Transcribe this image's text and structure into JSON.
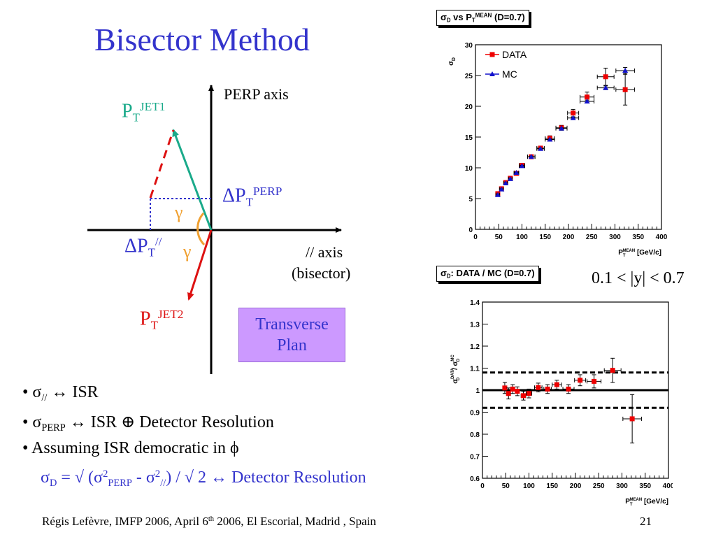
{
  "slide": {
    "title": "Bisector Method",
    "footer_left": "Régis Lefèvre, IMFP 2006, April 6",
    "footer_sup": "th",
    "footer_right_part": " 2006, El Escorial, Madrid , Spain",
    "page_number": "21"
  },
  "diagram": {
    "perp_axis_label": "PERP axis",
    "bisector_axis_label_1": "// axis",
    "bisector_axis_label_2": "(bisector)",
    "pt": "P",
    "t_sub": "T",
    "jet1_sup": "JET1",
    "jet2_sup": "JET2",
    "delta": "Δ",
    "perp_sup": "PERP",
    "par_sup": "//",
    "gamma": "γ",
    "plan_line1": "Transverse",
    "plan_line2": "Plan",
    "colors": {
      "jet1": "#1aaa8a",
      "jet2": "#dd1111",
      "dashed": "#dd1111",
      "dotted": "#3333cc",
      "gamma": "#f0a030"
    }
  },
  "bullets": [
    {
      "text": "σ",
      "sub": "//",
      "rest": "  ↔ ISR"
    },
    {
      "text": "σ",
      "sub": "PERP",
      "rest": " ↔ ISR ⊕ Detector Resolution"
    },
    {
      "text": "Assuming ISR democratic in ϕ",
      "sub": "",
      "rest": ""
    }
  ],
  "formula": {
    "a": "σ",
    "a_sub": "D",
    "b": "  = √ (σ",
    "b_sup": "2",
    "b_sub": "PERP",
    "c": " - σ",
    "c_sup": "2",
    "c_sub": "//",
    "d": ") / √ 2 ↔ Detector Resolution"
  },
  "rapidity_range": "0.1 < |y| < 0.7",
  "chart_data": [
    {
      "type": "scatter",
      "title_sigma": "σ",
      "title_sigma_sub": "D",
      "title_mid": " vs P",
      "title_t": "T",
      "title_mean": "MEAN",
      "title_tail": " (D=0.7)",
      "ylabel": "σ",
      "ylabel_sub": "D",
      "xlabel_p": "P",
      "xlabel_t": "T",
      "xlabel_mean": "MEAN",
      "xlabel_unit": " [GeV/c]",
      "xlim": [
        0,
        400
      ],
      "ylim": [
        0,
        30
      ],
      "xticks": [
        0,
        50,
        100,
        150,
        200,
        250,
        300,
        350,
        400
      ],
      "yticks": [
        0,
        5,
        10,
        15,
        20,
        25,
        30
      ],
      "legend": "top-left",
      "series": [
        {
          "name": "DATA",
          "color": "#ee0000",
          "marker": "square",
          "x": [
            48,
            56,
            65,
            75,
            88,
            100,
            120,
            140,
            160,
            185,
            210,
            240,
            280,
            322
          ],
          "y": [
            5.8,
            6.6,
            7.6,
            8.3,
            9.1,
            10.4,
            11.8,
            13.2,
            14.8,
            16.5,
            18.9,
            21.5,
            24.8,
            22.7
          ],
          "xerr": [
            4,
            4,
            4,
            4,
            5,
            6,
            8,
            8,
            10,
            12,
            12,
            15,
            18,
            20
          ],
          "yerr": [
            0.2,
            0.2,
            0.2,
            0.2,
            0.2,
            0.3,
            0.3,
            0.3,
            0.4,
            0.4,
            0.6,
            0.8,
            1.4,
            2.5
          ]
        },
        {
          "name": "MC",
          "color": "#1111cc",
          "marker": "triangle",
          "x": [
            48,
            56,
            65,
            75,
            88,
            100,
            120,
            140,
            160,
            185,
            210,
            240,
            280,
            322
          ],
          "y": [
            5.6,
            6.5,
            7.5,
            8.2,
            9.2,
            10.3,
            11.8,
            13.1,
            14.6,
            16.4,
            18.1,
            20.8,
            23.0,
            25.8
          ],
          "xerr": [
            4,
            4,
            4,
            4,
            5,
            6,
            8,
            8,
            10,
            12,
            12,
            15,
            18,
            20
          ],
          "yerr": [
            0.1,
            0.1,
            0.1,
            0.1,
            0.1,
            0.1,
            0.1,
            0.1,
            0.1,
            0.1,
            0.1,
            0.2,
            0.3,
            0.5
          ]
        }
      ]
    },
    {
      "type": "scatter",
      "title_sigma": "σ",
      "title_sigma_sub": "D",
      "title_tail": ": DATA / MC (D=0.7)",
      "ylabel_sigma": "σ",
      "ylabel_data_sup": "DATA",
      "ylabel_sub": "D",
      "ylabel_slash": " / ",
      "ylabel_mc_sup": "MC",
      "xlabel_p": "P",
      "xlabel_t": "T",
      "xlabel_mean": "MEAN",
      "xlabel_unit": " [GeV/c]",
      "xlim": [
        0,
        400
      ],
      "ylim": [
        0.6,
        1.4
      ],
      "xticks": [
        0,
        50,
        100,
        150,
        200,
        250,
        300,
        350,
        400
      ],
      "yticks": [
        0.6,
        0.7,
        0.8,
        0.9,
        1,
        1.1,
        1.2,
        1.3,
        1.4
      ],
      "reference_line": 1.0,
      "band": [
        0.92,
        1.08
      ],
      "series": [
        {
          "color": "#ee0000",
          "marker": "square",
          "x": [
            48,
            56,
            65,
            75,
            88,
            100,
            120,
            140,
            160,
            185,
            210,
            240,
            280,
            322
          ],
          "y": [
            1.01,
            0.985,
            1.005,
            0.995,
            0.975,
            0.985,
            1.012,
            1.005,
            1.025,
            1.005,
            1.045,
            1.04,
            1.09,
            0.87
          ],
          "xerr": [
            4,
            4,
            4,
            4,
            5,
            6,
            8,
            8,
            10,
            12,
            12,
            15,
            18,
            20
          ],
          "yerr": [
            0.025,
            0.025,
            0.02,
            0.02,
            0.02,
            0.02,
            0.02,
            0.02,
            0.02,
            0.02,
            0.025,
            0.03,
            0.055,
            0.11
          ]
        }
      ]
    }
  ]
}
